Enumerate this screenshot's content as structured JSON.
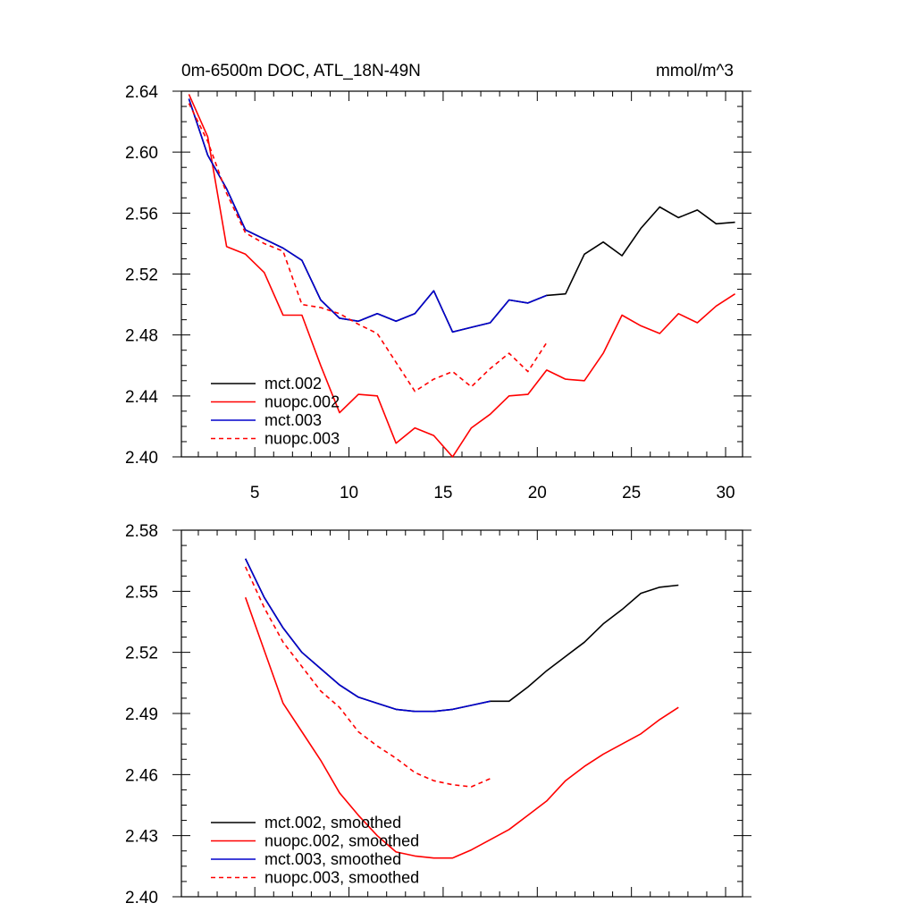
{
  "chart_data": [
    {
      "type": "line",
      "title": "0m-6500m DOC, ATL_18N-49N",
      "units": "mmol/m^3",
      "xlabel": "",
      "ylabel": "",
      "xlim": [
        1.1,
        30.9
      ],
      "ylim": [
        2.4,
        2.64
      ],
      "xticks": [
        5,
        10,
        15,
        20,
        25,
        30
      ],
      "xtick_labels": [
        "5",
        "10",
        "15",
        "20",
        "25",
        "30"
      ],
      "yticks": [
        2.4,
        2.44,
        2.48,
        2.52,
        2.56,
        2.6,
        2.64
      ],
      "ytick_labels": [
        "2.40",
        "2.44",
        "2.48",
        "2.52",
        "2.56",
        "2.60",
        "2.64"
      ],
      "legend_position": "bottom-left",
      "series": [
        {
          "name": "mct.002",
          "label": "mct.002",
          "color": "#000000",
          "dash": "solid",
          "x": [
            1.5,
            2.5,
            3.5,
            4.5,
            5.5,
            6.5,
            7.5,
            8.5,
            9.5,
            10.5,
            11.5,
            12.5,
            13.5,
            14.5,
            15.5,
            16.5,
            17.5,
            18.5,
            19.5,
            20.5,
            21.5,
            22.5,
            23.5,
            24.5,
            25.5,
            26.5,
            27.5,
            28.5,
            29.5,
            30.5
          ],
          "values": [
            2.635,
            2.598,
            2.576,
            2.549,
            2.543,
            2.537,
            2.529,
            2.503,
            2.491,
            2.489,
            2.494,
            2.489,
            2.494,
            2.509,
            2.482,
            2.485,
            2.488,
            2.503,
            2.501,
            2.506,
            2.507,
            2.533,
            2.541,
            2.532,
            2.55,
            2.564,
            2.557,
            2.562,
            2.553,
            2.554
          ]
        },
        {
          "name": "nuopc.002",
          "label": "nuopc.002",
          "color": "#ff0000",
          "dash": "solid",
          "x": [
            1.5,
            2.5,
            3.5,
            4.5,
            5.5,
            6.5,
            7.5,
            8.5,
            9.5,
            10.5,
            11.5,
            12.5,
            13.5,
            14.5,
            15.5,
            16.5,
            17.5,
            18.5,
            19.5,
            20.5,
            21.5,
            22.5,
            23.5,
            24.5,
            25.5,
            26.5,
            27.5,
            28.5,
            29.5,
            30.5
          ],
          "values": [
            2.638,
            2.61,
            2.538,
            2.533,
            2.521,
            2.493,
            2.493,
            2.46,
            2.429,
            2.441,
            2.44,
            2.409,
            2.419,
            2.414,
            2.4,
            2.419,
            2.428,
            2.44,
            2.441,
            2.457,
            2.451,
            2.45,
            2.468,
            2.493,
            2.486,
            2.481,
            2.494,
            2.488,
            2.499,
            2.507
          ]
        },
        {
          "name": "mct.003",
          "label": "mct.003",
          "color": "#0000cc",
          "dash": "solid",
          "x": [
            1.5,
            2.5,
            3.5,
            4.5,
            5.5,
            6.5,
            7.5,
            8.5,
            9.5,
            10.5,
            11.5,
            12.5,
            13.5,
            14.5,
            15.5,
            16.5,
            17.5,
            18.5,
            19.5,
            20.5
          ],
          "values": [
            2.635,
            2.598,
            2.576,
            2.549,
            2.543,
            2.537,
            2.529,
            2.503,
            2.491,
            2.489,
            2.494,
            2.489,
            2.494,
            2.509,
            2.482,
            2.485,
            2.488,
            2.503,
            2.501,
            2.506
          ]
        },
        {
          "name": "nuopc.003",
          "label": "nuopc.003",
          "color": "#ff0000",
          "dash": "dashed",
          "x": [
            1.5,
            2.5,
            3.5,
            4.5,
            5.5,
            6.5,
            7.5,
            8.5,
            9.5,
            10.5,
            11.5,
            12.5,
            13.5,
            14.5,
            15.5,
            16.5,
            17.5,
            18.5,
            19.5,
            20.5
          ],
          "values": [
            2.632,
            2.607,
            2.573,
            2.547,
            2.54,
            2.535,
            2.5,
            2.498,
            2.494,
            2.487,
            2.481,
            2.462,
            2.443,
            2.451,
            2.456,
            2.446,
            2.458,
            2.468,
            2.456,
            2.475
          ]
        }
      ]
    },
    {
      "type": "line",
      "title": "",
      "xlabel": "",
      "ylabel": "",
      "xlim": [
        1.1,
        30.9
      ],
      "ylim": [
        2.4,
        2.58
      ],
      "xticks": [
        5,
        10,
        15,
        20,
        25,
        30
      ],
      "xtick_labels": [],
      "yticks": [
        2.4,
        2.43,
        2.46,
        2.49,
        2.52,
        2.55,
        2.58
      ],
      "ytick_labels": [
        "2.40",
        "2.43",
        "2.46",
        "2.49",
        "2.52",
        "2.55",
        "2.58"
      ],
      "legend_position": "bottom-left",
      "series": [
        {
          "name": "mct.002, smoothed",
          "label": "mct.002, smoothed",
          "color": "#000000",
          "dash": "solid",
          "x": [
            4.5,
            5.5,
            6.5,
            7.5,
            8.5,
            9.5,
            10.5,
            11.5,
            12.5,
            13.5,
            14.5,
            15.5,
            16.5,
            17.5,
            18.5,
            19.5,
            20.5,
            21.5,
            22.5,
            23.5,
            24.5,
            25.5,
            26.5,
            27.5
          ],
          "values": [
            2.566,
            2.547,
            2.532,
            2.52,
            2.512,
            2.504,
            2.498,
            2.495,
            2.492,
            2.491,
            2.491,
            2.492,
            2.494,
            2.496,
            2.496,
            2.503,
            2.511,
            2.518,
            2.525,
            2.534,
            2.541,
            2.549,
            2.552,
            2.553
          ]
        },
        {
          "name": "nuopc.002, smoothed",
          "label": "nuopc.002, smoothed",
          "color": "#ff0000",
          "dash": "solid",
          "x": [
            4.5,
            5.5,
            6.5,
            7.5,
            8.5,
            9.5,
            10.5,
            11.5,
            12.5,
            13.5,
            14.5,
            15.5,
            16.5,
            17.5,
            18.5,
            19.5,
            20.5,
            21.5,
            22.5,
            23.5,
            24.5,
            25.5,
            26.5,
            27.5
          ],
          "values": [
            2.547,
            2.521,
            2.495,
            2.481,
            2.467,
            2.451,
            2.44,
            2.43,
            2.422,
            2.42,
            2.419,
            2.419,
            2.423,
            2.428,
            2.433,
            2.44,
            2.447,
            2.457,
            2.464,
            2.47,
            2.475,
            2.48,
            2.487,
            2.493
          ]
        },
        {
          "name": "mct.003, smoothed",
          "label": "mct.003, smoothed",
          "color": "#0000cc",
          "dash": "solid",
          "x": [
            4.5,
            5.5,
            6.5,
            7.5,
            8.5,
            9.5,
            10.5,
            11.5,
            12.5,
            13.5,
            14.5,
            15.5,
            16.5,
            17.5
          ],
          "values": [
            2.566,
            2.547,
            2.532,
            2.52,
            2.512,
            2.504,
            2.498,
            2.495,
            2.492,
            2.491,
            2.491,
            2.492,
            2.494,
            2.496
          ]
        },
        {
          "name": "nuopc.003, smoothed",
          "label": "nuopc.003, smoothed",
          "color": "#ff0000",
          "dash": "dashed",
          "x": [
            4.5,
            5.5,
            6.5,
            7.5,
            8.5,
            9.5,
            10.5,
            11.5,
            12.5,
            13.5,
            14.5,
            15.5,
            16.5,
            17.5
          ],
          "values": [
            2.562,
            2.542,
            2.525,
            2.513,
            2.501,
            2.493,
            2.481,
            2.474,
            2.468,
            2.461,
            2.457,
            2.455,
            2.454,
            2.458
          ]
        }
      ]
    }
  ]
}
